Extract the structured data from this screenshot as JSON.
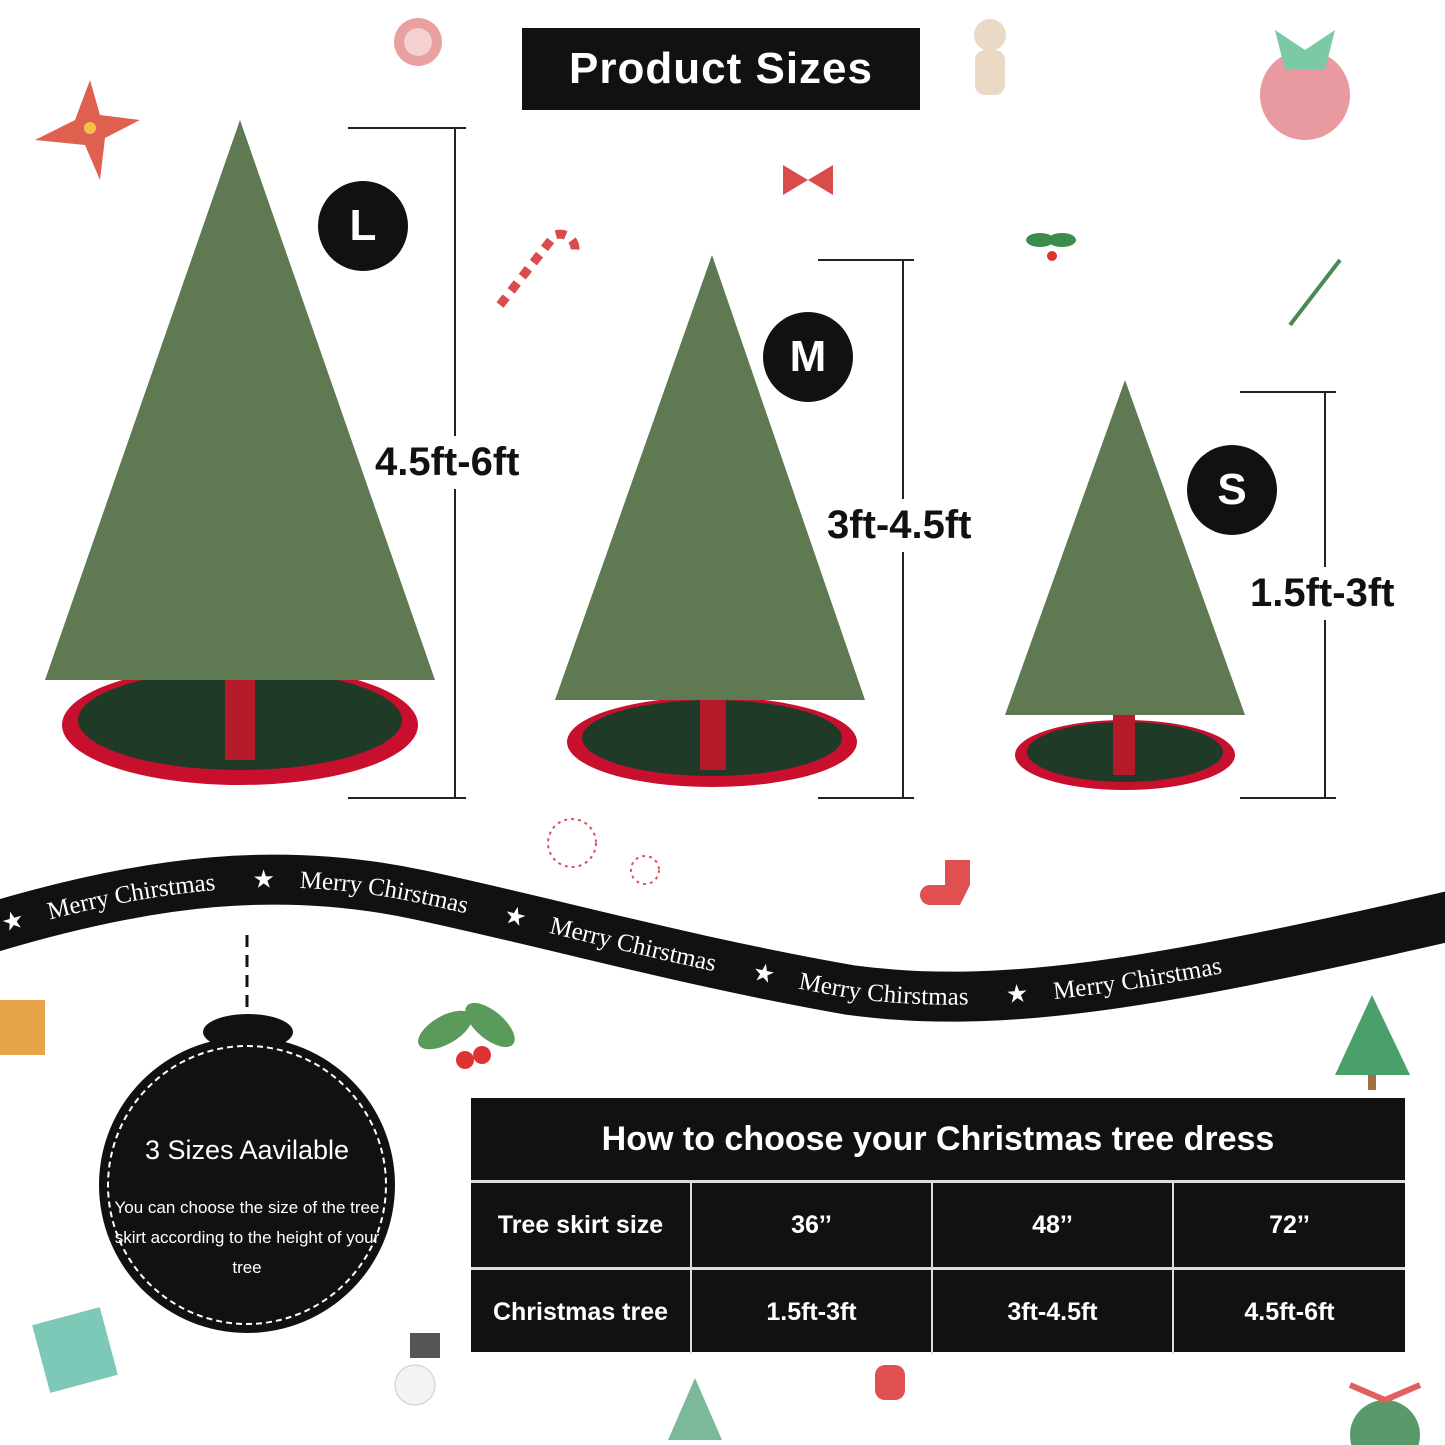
{
  "title": "Product Sizes",
  "sizes": [
    {
      "badge": "L",
      "range": "4.5ft-6ft"
    },
    {
      "badge": "M",
      "range": "3ft-4.5ft"
    },
    {
      "badge": "S",
      "range": "1.5ft-3ft"
    }
  ],
  "ribbon": {
    "text": "Merry Chirstmas",
    "star": "★"
  },
  "info": {
    "title": "3 Sizes Aavilable",
    "text": "You can choose the size of the tree skirt according to the height of your tree"
  },
  "table": {
    "title": "How to choose your Christmas tree dress",
    "rows": [
      {
        "label": "Tree skirt size",
        "values": [
          "36’’",
          "48’’",
          "72’’"
        ]
      },
      {
        "label": "Christmas tree",
        "values": [
          "1.5ft-3ft",
          "3ft-4.5ft",
          "4.5ft-6ft"
        ]
      }
    ]
  },
  "colors": {
    "dark": "#111111",
    "tree_green": "#5f7a52",
    "skirt_red": "#c8102e",
    "skirt_green": "#1f3a26"
  }
}
